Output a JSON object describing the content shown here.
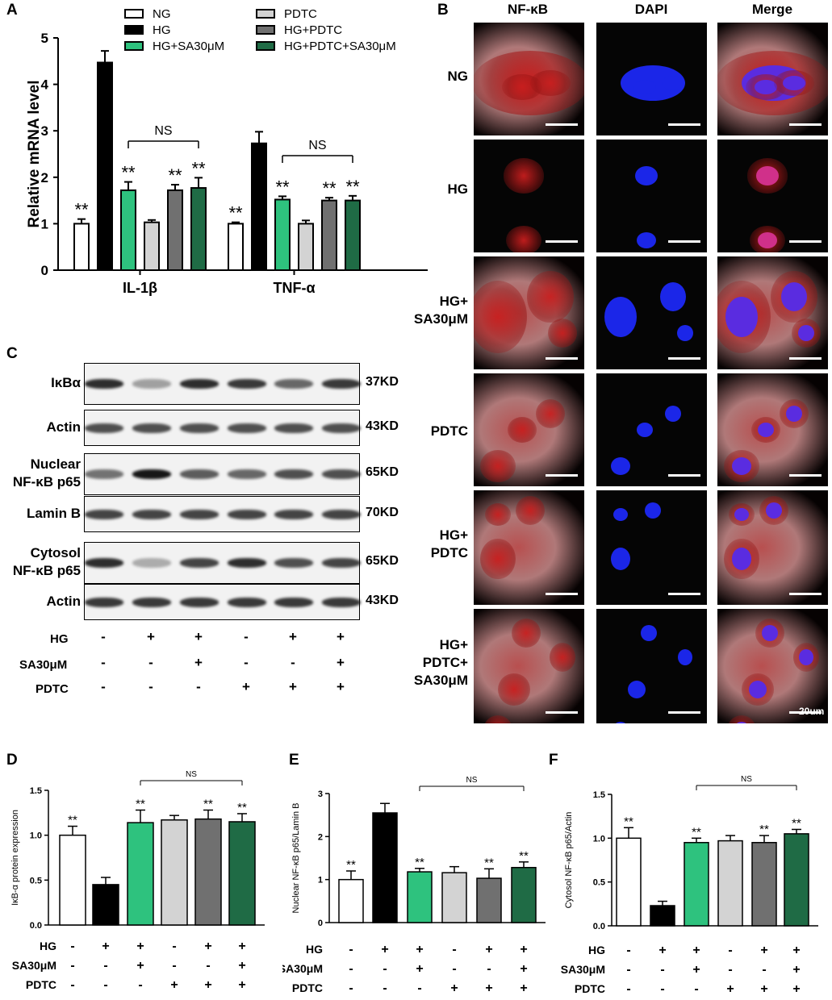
{
  "panels": {
    "A": "A",
    "B": "B",
    "C": "C",
    "D": "D",
    "E": "E",
    "F": "F"
  },
  "chart_data": [
    {
      "panel": "A",
      "type": "bar",
      "categories": [
        "IL-1β",
        "TNF-α"
      ],
      "ylabel": "Relative mRNA level",
      "ylim": [
        0,
        5
      ],
      "yticks": [
        "0",
        "1",
        "2",
        "3",
        "4",
        "5"
      ],
      "series": [
        {
          "name": "NG",
          "color": "#ffffff",
          "values": [
            1.0,
            1.0
          ],
          "err": [
            0.1,
            0.03
          ],
          "sig": [
            "**",
            "**"
          ]
        },
        {
          "name": "HG",
          "color": "#000000",
          "values": [
            4.47,
            2.73
          ],
          "err": [
            0.25,
            0.25
          ],
          "sig": [
            "",
            ""
          ]
        },
        {
          "name": "HG+SA30μM",
          "color": "#2ec27e",
          "values": [
            1.72,
            1.52
          ],
          "err": [
            0.18,
            0.07
          ],
          "sig": [
            "**",
            "**"
          ]
        },
        {
          "name": "PDTC",
          "color": "#d3d3d3",
          "values": [
            1.03,
            1.0
          ],
          "err": [
            0.05,
            0.07
          ],
          "sig": [
            "",
            ""
          ]
        },
        {
          "name": "HG+PDTC",
          "color": "#707070",
          "values": [
            1.72,
            1.5
          ],
          "err": [
            0.12,
            0.06
          ],
          "sig": [
            "**",
            "**"
          ]
        },
        {
          "name": "HG+PDTC+SA30μM",
          "color": "#1f6b45",
          "values": [
            1.77,
            1.5
          ],
          "err": [
            0.22,
            0.1
          ],
          "sig": [
            "**",
            "**"
          ]
        }
      ],
      "ns_label": "NS"
    },
    {
      "panel": "D",
      "type": "bar",
      "ylabel": "IκB-α protein expression",
      "ylim": [
        0,
        1.5
      ],
      "yticks": [
        "0.0",
        "0.5",
        "1.0",
        "1.5"
      ],
      "values": [
        1.0,
        0.45,
        1.14,
        1.17,
        1.18,
        1.15
      ],
      "err": [
        0.1,
        0.08,
        0.14,
        0.05,
        0.1,
        0.09
      ],
      "sig": [
        "**",
        "",
        "**",
        "",
        "**",
        "**"
      ],
      "colors": [
        "#ffffff",
        "#000000",
        "#2ec27e",
        "#d3d3d3",
        "#707070",
        "#1f6b45"
      ],
      "ns_label": "NS"
    },
    {
      "panel": "E",
      "type": "bar",
      "ylabel": "Nuclear NF-κB p65/Lamin B",
      "ylim": [
        0,
        3
      ],
      "yticks": [
        "0",
        "1",
        "2",
        "3"
      ],
      "values": [
        1.0,
        2.55,
        1.18,
        1.16,
        1.03,
        1.28
      ],
      "err": [
        0.2,
        0.22,
        0.08,
        0.14,
        0.22,
        0.13
      ],
      "sig": [
        "**",
        "",
        "**",
        "",
        "**",
        "**"
      ],
      "colors": [
        "#ffffff",
        "#000000",
        "#2ec27e",
        "#d3d3d3",
        "#707070",
        "#1f6b45"
      ],
      "ns_label": "NS"
    },
    {
      "panel": "F",
      "type": "bar",
      "ylabel": "Cytosol NF-κB p65/Actin",
      "ylim": [
        0,
        1.5
      ],
      "yticks": [
        "0.0",
        "0.5",
        "1.0",
        "1.5"
      ],
      "values": [
        1.0,
        0.23,
        0.95,
        0.97,
        0.95,
        1.05
      ],
      "err": [
        0.12,
        0.05,
        0.05,
        0.06,
        0.08,
        0.05
      ],
      "sig": [
        "**",
        "",
        "**",
        "",
        "**",
        "**"
      ],
      "colors": [
        "#ffffff",
        "#000000",
        "#2ec27e",
        "#d3d3d3",
        "#707070",
        "#1f6b45"
      ],
      "ns_label": "NS"
    }
  ],
  "treatments": {
    "rows": [
      "HG",
      "SA30μM",
      "PDTC"
    ],
    "signs": [
      [
        "-",
        "+",
        "+",
        "-",
        "+",
        "+"
      ],
      [
        "-",
        "-",
        "+",
        "-",
        "-",
        "+"
      ],
      [
        "-",
        "-",
        "-",
        "+",
        "+",
        "+"
      ]
    ]
  },
  "microscopy": {
    "columns": [
      "NF-κB",
      "DAPI",
      "Merge"
    ],
    "rows": [
      "NG",
      "HG",
      "HG+ SA30μM",
      "PDTC",
      "HG+ PDTC",
      "HG+ PDTC+ SA30μM"
    ],
    "scale_label": "20um"
  },
  "western": {
    "rows": [
      {
        "label": "IκBα",
        "kd": "37KD",
        "intensity": [
          0.85,
          0.35,
          0.85,
          0.8,
          0.6,
          0.8
        ]
      },
      {
        "label": "Actin",
        "kd": "43KD",
        "intensity": [
          0.7,
          0.7,
          0.7,
          0.7,
          0.7,
          0.7
        ]
      },
      {
        "label": "Nuclear NF-κB p65",
        "kd": "65KD",
        "intensity": [
          0.55,
          0.95,
          0.65,
          0.6,
          0.7,
          0.7
        ]
      },
      {
        "label": "Lamin B",
        "kd": "70KD",
        "intensity": [
          0.75,
          0.75,
          0.75,
          0.75,
          0.75,
          0.75
        ]
      },
      {
        "label": "Cytosol NF-κB p65",
        "kd": "65KD",
        "intensity": [
          0.85,
          0.3,
          0.75,
          0.85,
          0.7,
          0.75
        ]
      },
      {
        "label": "Actin",
        "kd": "43KD",
        "intensity": [
          0.8,
          0.8,
          0.8,
          0.8,
          0.8,
          0.8
        ]
      }
    ]
  }
}
